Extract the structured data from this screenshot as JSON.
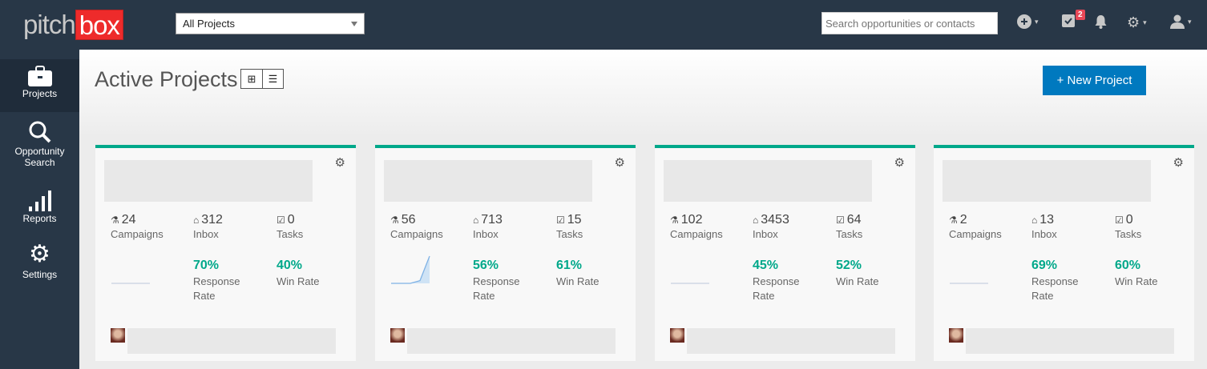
{
  "header": {
    "logo_left": "pitch",
    "logo_right": "box",
    "project_select": "All Projects",
    "search_placeholder": "Search opportunities or contacts",
    "tasks_badge": "2"
  },
  "sidebar": {
    "items": [
      {
        "label": "Projects",
        "icon": "briefcase-icon"
      },
      {
        "label": "Opportunity Search",
        "icon": "search-icon"
      },
      {
        "label": "Reports",
        "icon": "signal-bars-icon"
      },
      {
        "label": "Settings",
        "icon": "gear-icon"
      }
    ]
  },
  "main": {
    "title": "Active Projects",
    "new_project": "+ New Project"
  },
  "labels": {
    "campaigns": "Campaigns",
    "inbox": "Inbox",
    "tasks": "Tasks",
    "response": "Response Rate",
    "win": "Win Rate"
  },
  "colors": {
    "accent": "#00a88a",
    "primary": "#0079bf",
    "nav": "#283747",
    "logo_red": "#ee2b2b"
  },
  "cards": [
    {
      "campaigns": "24",
      "inbox": "312",
      "tasks": "0",
      "response_rate": "70%",
      "win_rate": "40%",
      "sparkline": [
        0,
        0,
        0,
        0,
        0
      ]
    },
    {
      "campaigns": "56",
      "inbox": "713",
      "tasks": "15",
      "response_rate": "56%",
      "win_rate": "61%",
      "sparkline": [
        0,
        0,
        0,
        1,
        10
      ]
    },
    {
      "campaigns": "102",
      "inbox": "3453",
      "tasks": "64",
      "response_rate": "45%",
      "win_rate": "52%",
      "sparkline": [
        0,
        0,
        0,
        0,
        0
      ]
    },
    {
      "campaigns": "2",
      "inbox": "13",
      "tasks": "0",
      "response_rate": "69%",
      "win_rate": "60%",
      "sparkline": [
        0,
        0,
        0,
        0,
        0
      ]
    }
  ]
}
